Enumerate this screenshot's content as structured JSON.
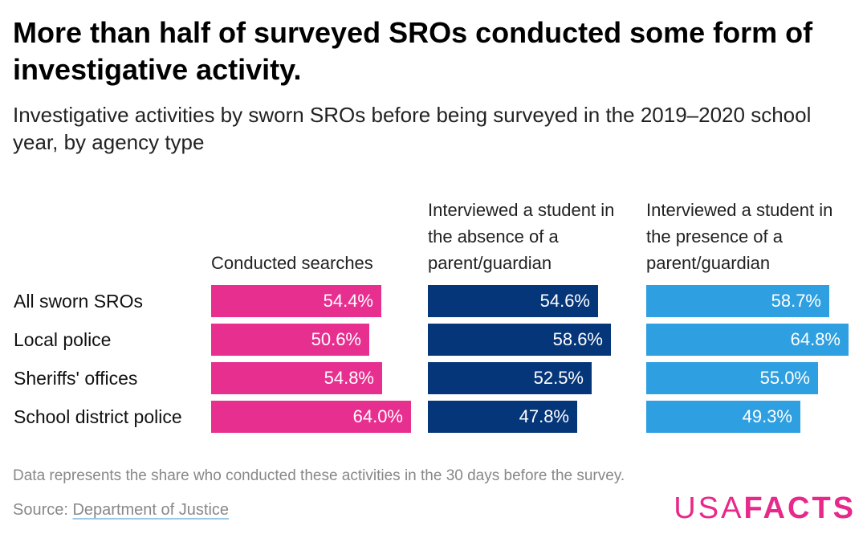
{
  "title": "More than half of surveyed SROs conducted some form of investigative activity.",
  "subtitle": "Investigative activities by sworn SROs before being surveyed in the 2019–2020 school year, by agency type",
  "footer": {
    "note": "Data represents the share who conducted these activities in the 30 days before the survey.",
    "source_prefix": "Source: ",
    "source_link": "Department of Justice",
    "logo_light": "USA",
    "logo_bold": "FACTS"
  },
  "chart_data": {
    "type": "bar",
    "orientation": "horizontal",
    "layout": "small-multiples",
    "categories": [
      "All sworn SROs",
      "Local police",
      "Sheriffs' offices",
      "School district police"
    ],
    "series": [
      {
        "name": "Conducted searches",
        "color": "#e72f8f",
        "values": [
          54.4,
          50.6,
          54.8,
          64.0
        ],
        "labels": [
          "54.4%",
          "50.6%",
          "54.8%",
          "64.0%"
        ]
      },
      {
        "name": "Interviewed a student in the absence of a parent/guardian",
        "color": "#06367a",
        "values": [
          54.6,
          58.6,
          52.5,
          47.8
        ],
        "labels": [
          "54.6%",
          "58.6%",
          "52.5%",
          "47.8%"
        ]
      },
      {
        "name": "Interviewed a student in the presence of a parent/guardian",
        "color": "#2e9fe0",
        "values": [
          58.7,
          64.8,
          55.0,
          49.3
        ],
        "labels": [
          "58.7%",
          "64.8%",
          "55.0%",
          "49.3%"
        ]
      }
    ],
    "unit": "%",
    "xlim": [
      0,
      100
    ],
    "grid": false,
    "legend": "none"
  }
}
